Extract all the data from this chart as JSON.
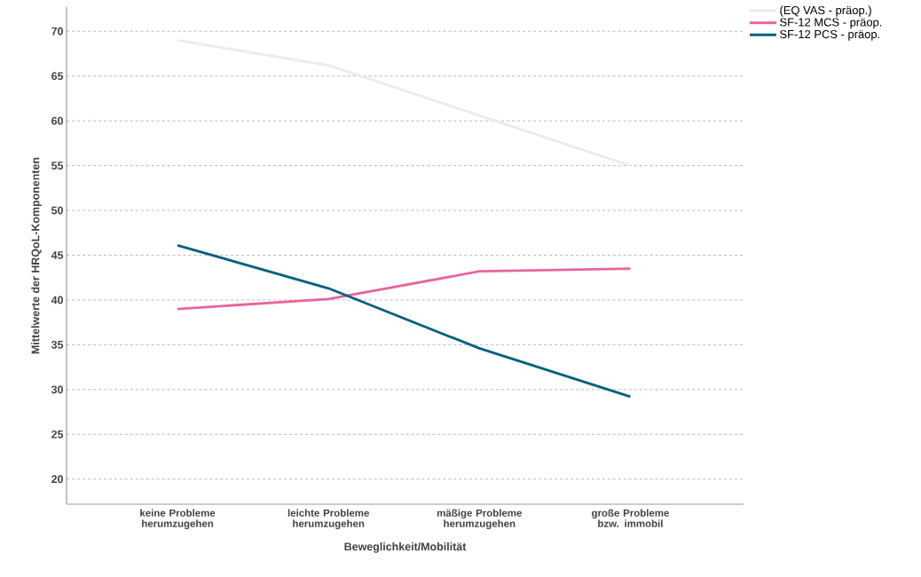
{
  "chart_data": {
    "type": "line",
    "xlabel": "Beweglichkeit/Mobilität",
    "ylabel": "Mittelwerte der HRQoL-Komponenten",
    "categories": [
      "keine Probleme herumzugehen",
      "leichte Probleme herumzugehen",
      "mäßige Probleme herumzugehen",
      "große Probleme bzw. immobil"
    ],
    "series": [
      {
        "name": "(EQ VAS - präop.)",
        "color": "#ebebe8",
        "values": [
          69.0,
          66.2,
          60.6,
          55.0
        ]
      },
      {
        "name": "SF-12 MCS - präop.",
        "color": "#e8649f",
        "values": [
          39.0,
          40.1,
          43.2,
          43.5
        ]
      },
      {
        "name": "SF-12 PCS  - präop.",
        "color": "#00607f",
        "values": [
          46.1,
          41.3,
          34.6,
          29.2
        ]
      }
    ],
    "ylim": [
      17.2,
      72.7
    ],
    "yticks": [
      20,
      25,
      30,
      35,
      40,
      45,
      50,
      55,
      60,
      65,
      70
    ],
    "grid": "y",
    "legend": "top right",
    "marker": "none",
    "line_style": "solid"
  }
}
